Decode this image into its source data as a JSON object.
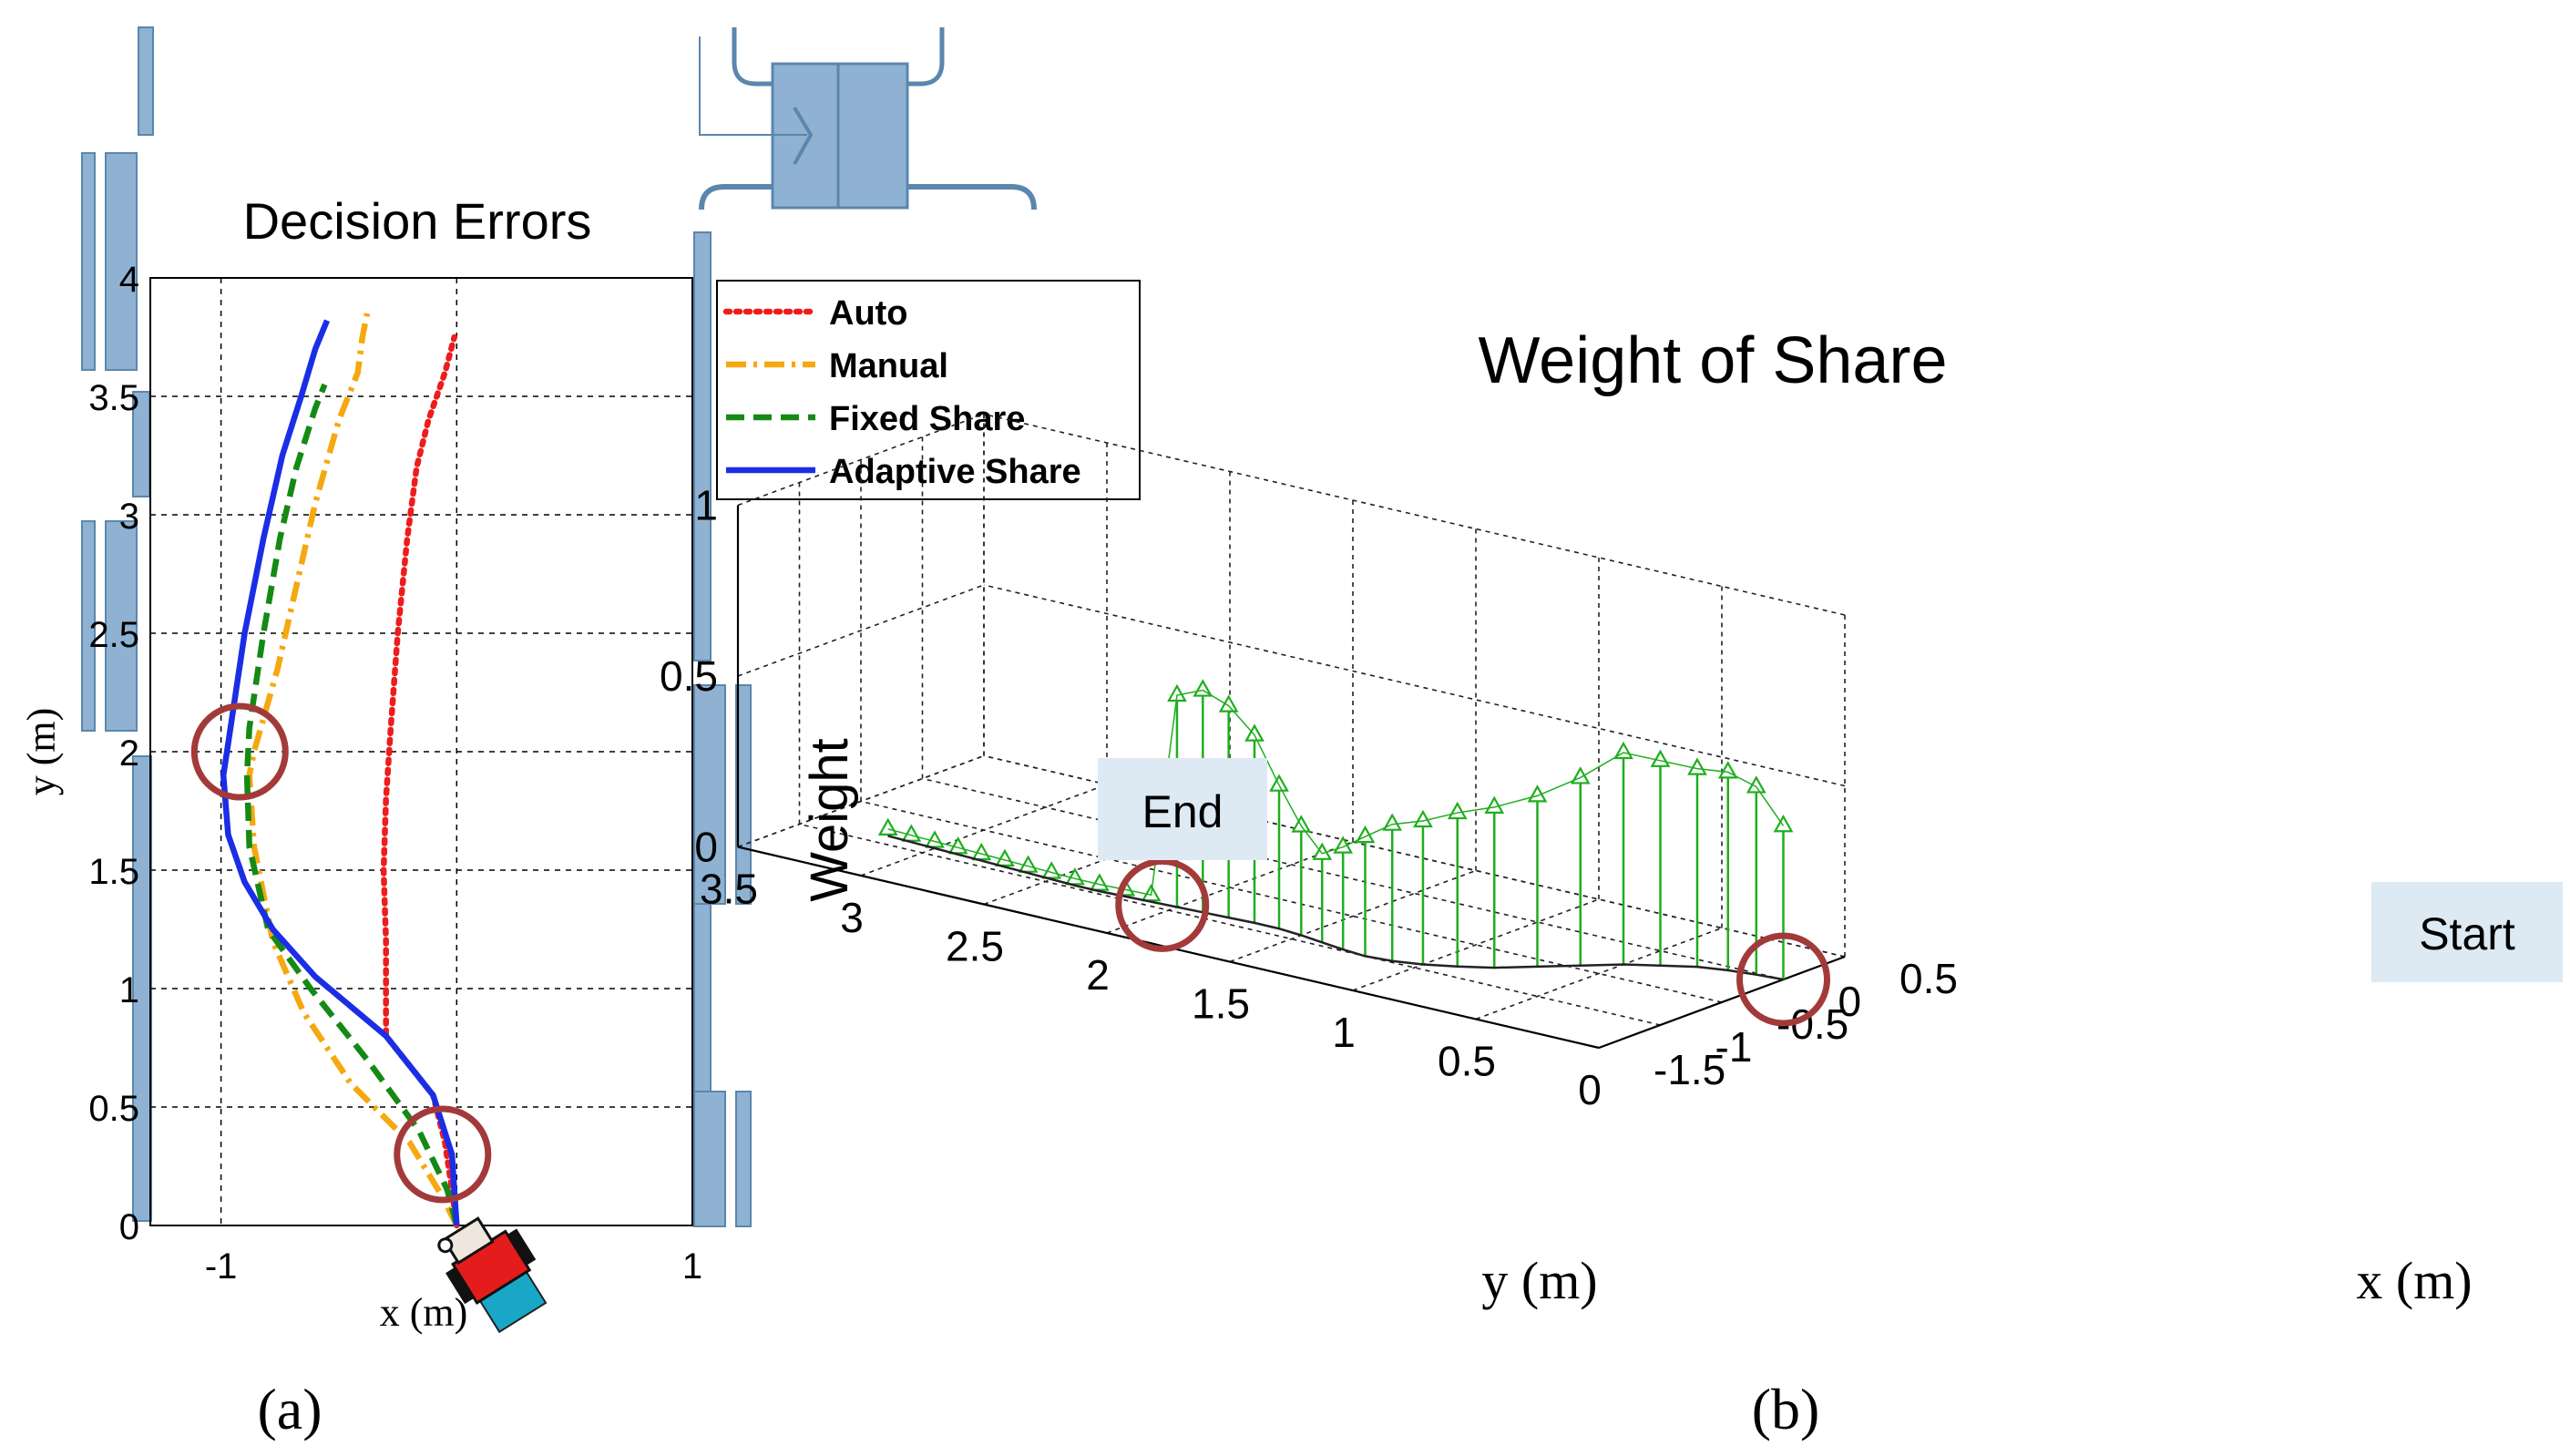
{
  "colors": {
    "auto": "#ee1c1c",
    "manual": "#f5a80f",
    "fixed_share": "#148a14",
    "adaptive_share": "#1a2ee6",
    "stem": "#1fae1f",
    "circle": "#a33a3a",
    "wall": "#8fb2d2",
    "wall_edge": "#5b86ad",
    "label_box": "#dde9f3"
  },
  "icons": {
    "robot": "robot-icon"
  },
  "panel_a": {
    "caption": "(a)",
    "chart_data": {
      "type": "line",
      "title": "Decision Errors",
      "xlabel": "x (m)",
      "ylabel": "y (m)",
      "xlim": [
        -1.3,
        1
      ],
      "ylim": [
        0,
        4
      ],
      "xticks": [
        -1,
        0,
        1
      ],
      "xtick_labels": [
        "-1",
        "",
        "1"
      ],
      "yticks": [
        0,
        0.5,
        1,
        1.5,
        2,
        2.5,
        3,
        3.5,
        4
      ],
      "ytick_labels": [
        "0",
        "0.5",
        "1",
        "1.5",
        "2",
        "2.5",
        "3",
        "3.5",
        "4"
      ],
      "grid": true,
      "legend_position": "top-right",
      "series": [
        {
          "name": "Auto",
          "style": "dotted",
          "x": [
            0,
            -0.02,
            -0.05,
            -0.1,
            -0.3,
            -0.3,
            -0.3,
            -0.31,
            -0.3,
            -0.28,
            -0.25,
            -0.21,
            -0.17,
            -0.12,
            -0.05,
            -0.01
          ],
          "y": [
            0,
            0.15,
            0.35,
            0.55,
            0.8,
            1.0,
            1.2,
            1.5,
            1.8,
            2.1,
            2.5,
            2.9,
            3.2,
            3.4,
            3.6,
            3.75
          ]
        },
        {
          "name": "Manual",
          "style": "dashdot",
          "x": [
            0,
            -0.06,
            -0.2,
            -0.45,
            -0.65,
            -0.78,
            -0.86,
            -0.88,
            -0.86,
            -0.76,
            -0.68,
            -0.6,
            -0.5,
            -0.42,
            -0.4,
            -0.38
          ],
          "y": [
            0,
            0.12,
            0.35,
            0.6,
            0.9,
            1.2,
            1.6,
            1.9,
            2.0,
            2.35,
            2.7,
            3.05,
            3.4,
            3.6,
            3.75,
            3.85
          ]
        },
        {
          "name": "Fixed Share",
          "style": "dashed",
          "x": [
            0,
            -0.04,
            -0.16,
            -0.38,
            -0.62,
            -0.8,
            -0.88,
            -0.89,
            -0.88,
            -0.82,
            -0.75,
            -0.68,
            -0.6,
            -0.56
          ],
          "y": [
            0,
            0.15,
            0.4,
            0.7,
            1.0,
            1.25,
            1.6,
            1.9,
            2.1,
            2.5,
            2.9,
            3.2,
            3.45,
            3.55
          ]
        },
        {
          "name": "Adaptive Share",
          "style": "solid",
          "x": [
            0,
            -0.02,
            -0.1,
            -0.3,
            -0.6,
            -0.78,
            -0.9,
            -0.97,
            -0.99,
            -0.96,
            -0.9,
            -0.82,
            -0.74,
            -0.66,
            -0.6,
            -0.55
          ],
          "y": [
            0,
            0.3,
            0.55,
            0.8,
            1.05,
            1.25,
            1.45,
            1.65,
            1.9,
            2.1,
            2.5,
            2.9,
            3.25,
            3.5,
            3.7,
            3.82
          ]
        }
      ],
      "annotations": [
        {
          "shape": "circle",
          "x": -0.92,
          "y": 2.0
        },
        {
          "shape": "circle",
          "x": -0.06,
          "y": 0.3
        }
      ]
    }
  },
  "panel_b": {
    "caption": "(b)",
    "chart_data": {
      "type": "stem3",
      "title": "Weight of Share",
      "xlabel": "x (m)",
      "ylabel": "y (m)",
      "zlabel": "Weight",
      "xlim": [
        -1.5,
        0.5
      ],
      "ylim": [
        0,
        3.5
      ],
      "zlim": [
        0,
        1
      ],
      "xticks": [
        -1.5,
        -1,
        -0.5,
        0,
        0.5
      ],
      "xtick_labels": [
        "-1.5",
        "-1",
        "-0.5",
        "0",
        "0.5"
      ],
      "yticks": [
        0,
        0.5,
        1,
        1.5,
        2,
        2.5,
        3,
        3.5
      ],
      "ytick_labels": [
        "0",
        "0.5",
        "1",
        "1.5",
        "2",
        "2.5",
        "3",
        "3.5"
      ],
      "zticks": [
        0,
        0.5,
        1
      ],
      "ztick_labels": [
        "0",
        "0.5",
        "1"
      ],
      "grid": true,
      "marker": "triangle",
      "start_label": "Start",
      "end_label": "End",
      "path": {
        "y": [
          0.0,
          0.1,
          0.2,
          0.3,
          0.4,
          0.5,
          0.6,
          0.7,
          0.8,
          0.9,
          1.0,
          1.1,
          1.2,
          1.3,
          1.4,
          1.5,
          1.6,
          1.7,
          1.8,
          1.9,
          2.0,
          2.1,
          2.2,
          2.3,
          2.4,
          2.5,
          2.6,
          2.7,
          2.8,
          2.9,
          3.0,
          3.1,
          3.2
        ],
        "x": [
          0.0,
          -0.02,
          -0.05,
          -0.1,
          -0.2,
          -0.3,
          -0.45,
          -0.6,
          -0.75,
          -0.85,
          -0.93,
          -0.98,
          -1.0,
          -0.98,
          -0.95,
          -0.92,
          -0.9,
          -0.9,
          -0.91,
          -0.92,
          -0.93,
          -0.94,
          -0.95,
          -0.96,
          -0.96,
          -0.95,
          -0.94,
          -0.93,
          -0.92,
          -0.91,
          -0.9,
          -0.89,
          -0.88
        ],
        "weight": [
          0.45,
          0.55,
          0.58,
          0.58,
          0.6,
          0.62,
          0.55,
          0.5,
          0.47,
          0.45,
          0.42,
          0.4,
          0.35,
          0.3,
          0.26,
          0.32,
          0.42,
          0.55,
          0.62,
          0.65,
          0.62,
          0.02,
          0.02,
          0.02,
          0.02,
          0.02,
          0.02,
          0.02,
          0.02,
          0.02,
          0.02,
          0.02,
          0.02
        ]
      },
      "annotations": [
        {
          "shape": "circle",
          "x": 0.0,
          "y": 0.0,
          "z": 0
        },
        {
          "shape": "circle",
          "x": -0.95,
          "y": 2.05,
          "z": 0
        }
      ]
    }
  }
}
